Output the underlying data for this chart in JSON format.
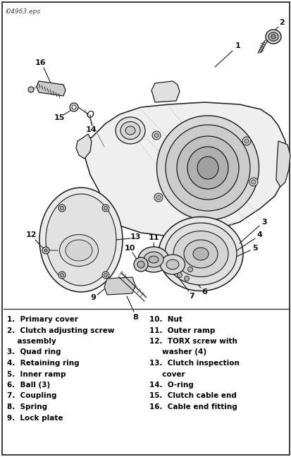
{
  "file_label": "i04963.eps",
  "bg_color": "#ffffff",
  "border_color": "#000000",
  "text_color": "#000000",
  "legend_left": [
    "1.  Primary cover",
    "2.  Clutch adjusting screw",
    "    assembly",
    "3.  Quad ring",
    "4.  Retaining ring",
    "5.  Inner ramp",
    "6.  Ball (3)",
    "7.  Coupling",
    "8.  Spring",
    "9.  Lock plate"
  ],
  "legend_right": [
    "10.  Nut",
    "11.  Outer ramp",
    "12.  TORX screw with",
    "     washer (4)",
    "13.  Clutch inspection",
    "     cover",
    "14.  O-ring",
    "15.  Clutch cable end",
    "16.  Cable end fitting"
  ],
  "font_size_legend": 7.5,
  "line_color": "#1a1a1a",
  "light_gray": "#e8e8e8",
  "mid_gray": "#c8c8c8",
  "dark_gray": "#888888"
}
